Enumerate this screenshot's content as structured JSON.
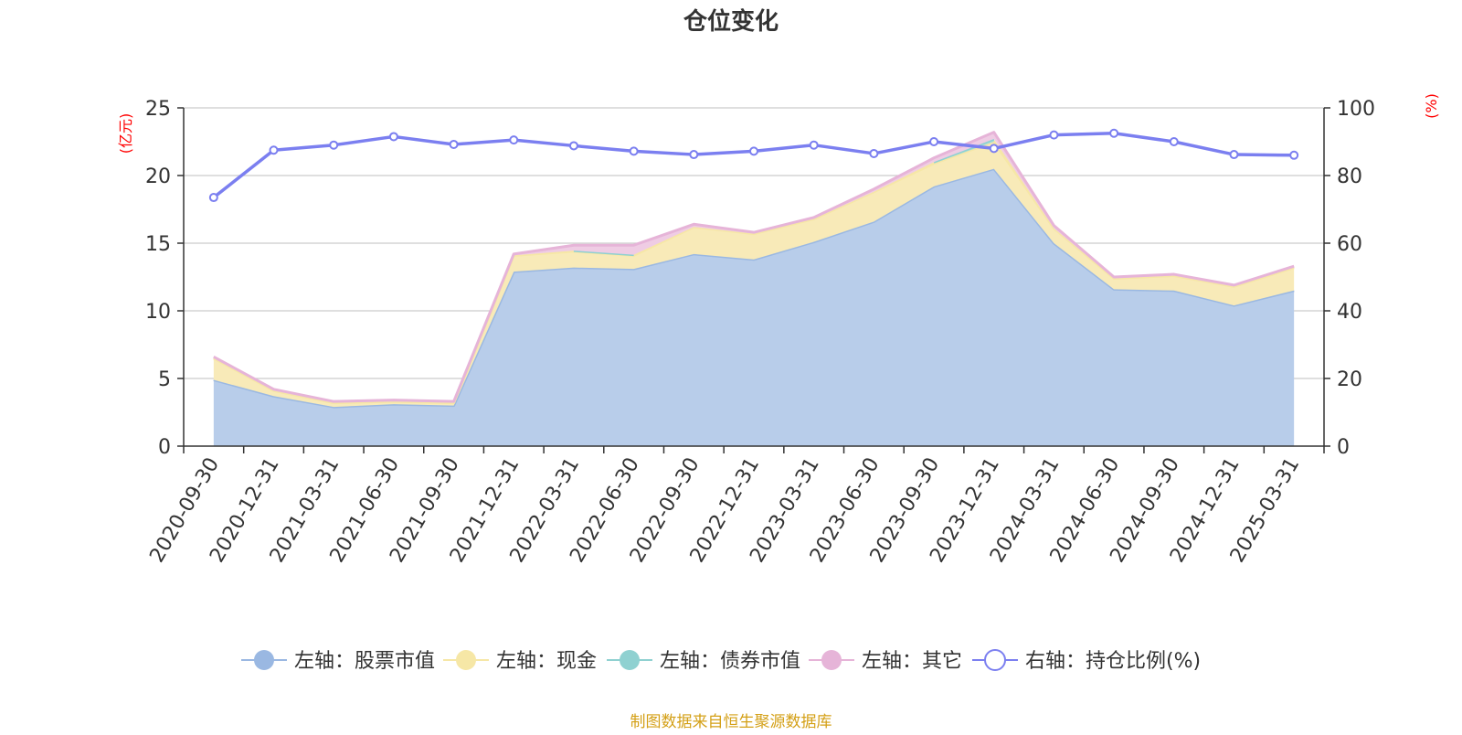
{
  "chart_data": {
    "type": "area",
    "title": "仓位变化",
    "left_axis_unit": "(亿元)",
    "right_axis_unit": "(%)",
    "categories": [
      "2020-09-30",
      "2020-12-31",
      "2021-03-31",
      "2021-06-30",
      "2021-09-30",
      "2021-12-31",
      "2022-03-31",
      "2022-06-30",
      "2022-09-30",
      "2022-12-31",
      "2023-03-31",
      "2023-06-30",
      "2023-09-30",
      "2023-12-31",
      "2024-03-31",
      "2024-06-30",
      "2024-09-30",
      "2024-12-31",
      "2025-03-31"
    ],
    "left_ylim": [
      0,
      25
    ],
    "left_yticks": [
      0,
      5,
      10,
      15,
      20,
      25
    ],
    "right_ylim": [
      0,
      100
    ],
    "right_yticks": [
      0,
      20,
      40,
      60,
      80,
      100
    ],
    "grid": true,
    "legend_position": "bottom",
    "series": [
      {
        "name": "左轴：股票市值",
        "axis": "left",
        "kind": "stacked-area",
        "color": "#9ab8e2",
        "fill": "#b8cdea",
        "values": [
          4.9,
          3.7,
          2.9,
          3.1,
          3.0,
          12.9,
          13.2,
          13.1,
          14.2,
          13.8,
          15.1,
          16.6,
          19.2,
          20.5,
          15.0,
          11.6,
          11.5,
          10.4,
          11.5
        ]
      },
      {
        "name": "左轴：现金",
        "axis": "left",
        "kind": "stacked-area",
        "color": "#f6e7a6",
        "fill": "#f8eab8",
        "values": [
          1.6,
          0.4,
          0.3,
          0.2,
          0.2,
          1.2,
          1.2,
          1.0,
          2.0,
          1.9,
          1.7,
          2.2,
          1.7,
          2.0,
          1.1,
          0.8,
          1.1,
          1.4,
          1.7
        ]
      },
      {
        "name": "左轴：债券市值",
        "axis": "left",
        "kind": "stacked-area",
        "color": "#8fd1d1",
        "fill": "#a6dcdc",
        "values": [
          null,
          null,
          null,
          null,
          null,
          null,
          0.05,
          0.05,
          null,
          null,
          null,
          null,
          0.1,
          0.2,
          null,
          null,
          null,
          null,
          null
        ]
      },
      {
        "name": "左轴：其它",
        "axis": "left",
        "kind": "stacked-area",
        "color": "#e6b4d8",
        "fill": "#efcce4",
        "values": [
          0.1,
          0.1,
          0.1,
          0.1,
          0.1,
          0.1,
          0.4,
          0.7,
          0.2,
          0.1,
          0.1,
          0.2,
          0.3,
          0.5,
          0.2,
          0.1,
          0.1,
          0.1,
          0.1
        ]
      },
      {
        "name": "右轴：持仓比例(%)",
        "axis": "right",
        "kind": "line",
        "color": "#7b7ff0",
        "values": [
          73.5,
          87.5,
          89.0,
          91.5,
          89.2,
          90.5,
          88.8,
          87.2,
          86.2,
          87.2,
          89.0,
          86.5,
          90.0,
          88.0,
          92.0,
          92.5,
          90.0,
          86.2,
          86.0
        ]
      }
    ]
  },
  "colors": {
    "title": "#333333",
    "axis_unit": "#ff0000",
    "axis_line": "#333333",
    "grid": "#cccccc",
    "footer": "#d4a017"
  },
  "footer": {
    "source": "制图数据来自恒生聚源数据库"
  }
}
